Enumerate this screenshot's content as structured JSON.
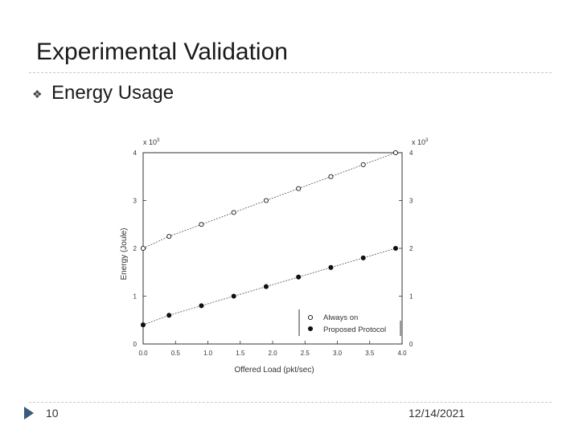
{
  "slide": {
    "title": "Experimental Validation",
    "bullet": "Energy Usage",
    "page_number": "10",
    "date": "12/14/2021"
  },
  "chart_data": {
    "type": "line",
    "xlabel": "Offered Load (pkt/sec)",
    "ylabel": "Energy (Joule)",
    "multiplier_left": "x 10",
    "multiplier_right": "x 10",
    "multiplier_exp": "3",
    "xlim": [
      0.0,
      4.0
    ],
    "ylim": [
      0,
      4
    ],
    "xticks": [
      "0.0",
      "0.5",
      "1.0",
      "1.5",
      "2.0",
      "2.5",
      "3.0",
      "3.5",
      "4.0"
    ],
    "yticks": [
      "0",
      "1",
      "2",
      "3",
      "4"
    ],
    "series": [
      {
        "name": "Always on",
        "marker": "open-circle",
        "x": [
          0.0,
          0.4,
          0.9,
          1.4,
          1.9,
          2.4,
          2.9,
          3.4,
          3.9
        ],
        "y": [
          2.0,
          2.25,
          2.5,
          2.75,
          3.0,
          3.25,
          3.5,
          3.75,
          4.0
        ]
      },
      {
        "name": "Proposed Protocol",
        "marker": "filled-circle",
        "x": [
          0.0,
          0.4,
          0.9,
          1.4,
          1.9,
          2.4,
          2.9,
          3.4,
          3.9
        ],
        "y": [
          0.4,
          0.6,
          0.8,
          1.0,
          1.2,
          1.4,
          1.6,
          1.8,
          2.0
        ]
      }
    ],
    "legend_position": "bottom-right",
    "grid": false,
    "colors": {
      "axis": "#333333",
      "marker": "#111111",
      "line": "#555555"
    }
  }
}
